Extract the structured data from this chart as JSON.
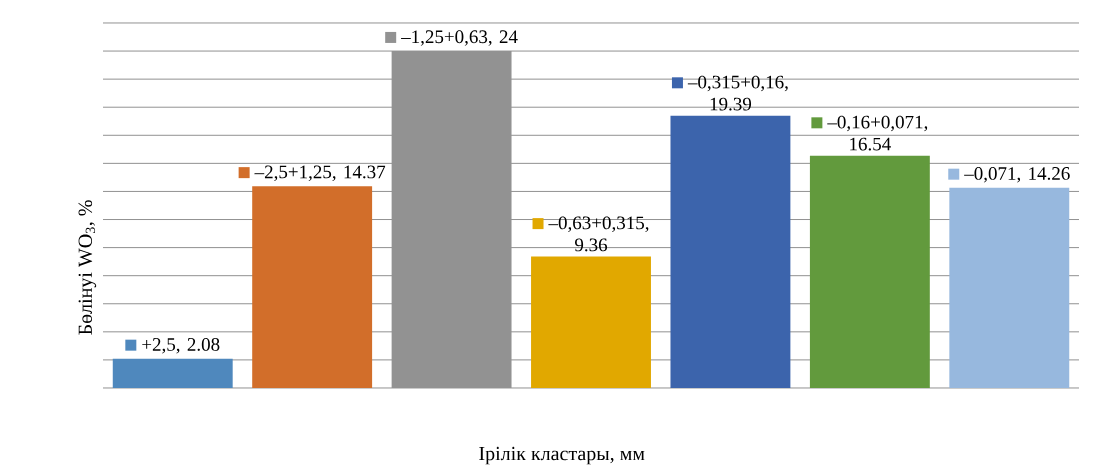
{
  "chart_data": {
    "type": "bar",
    "xlabel": "Ірілік кластары, мм",
    "ylabel": "Бөлінуі WO$_{3}$, %",
    "categories": [
      "+2,5",
      "–2,5+1,25",
      "–1,25+0,63",
      "–0,63+0,315",
      "–0,315+0,16",
      "–0,16+0,071",
      "–0,071"
    ],
    "values": [
      2.08,
      14.37,
      24,
      9.36,
      19.39,
      16.54,
      14.26
    ],
    "colors": [
      "#4f88bd",
      "#d26e2a",
      "#929292",
      "#e1a800",
      "#3c64ac",
      "#629a3d",
      "#97b8de"
    ],
    "ylim": [
      0,
      26
    ],
    "yticks": [
      {
        "value": 0,
        "label": null
      },
      {
        "value": 2,
        "label": null
      },
      {
        "value": 4,
        "label": null
      },
      {
        "value": 6,
        "label": null
      },
      {
        "value": 8,
        "label": null
      },
      {
        "value": 10,
        "label": null
      },
      {
        "value": 12,
        "label": null
      },
      {
        "value": 14,
        "label": null
      },
      {
        "value": 16,
        "label": null
      },
      {
        "value": 18,
        "label": null
      },
      {
        "value": 20,
        "label": null
      },
      {
        "value": 22,
        "label": null
      },
      {
        "value": 24,
        "label": null
      },
      {
        "value": 26,
        "label": null
      }
    ],
    "grid": "y",
    "value_labels": [
      ", 2.08",
      ", 14.37",
      ", 24",
      ", 9.36",
      ", 19.39",
      ", 16.54",
      ", 14.26"
    ]
  }
}
